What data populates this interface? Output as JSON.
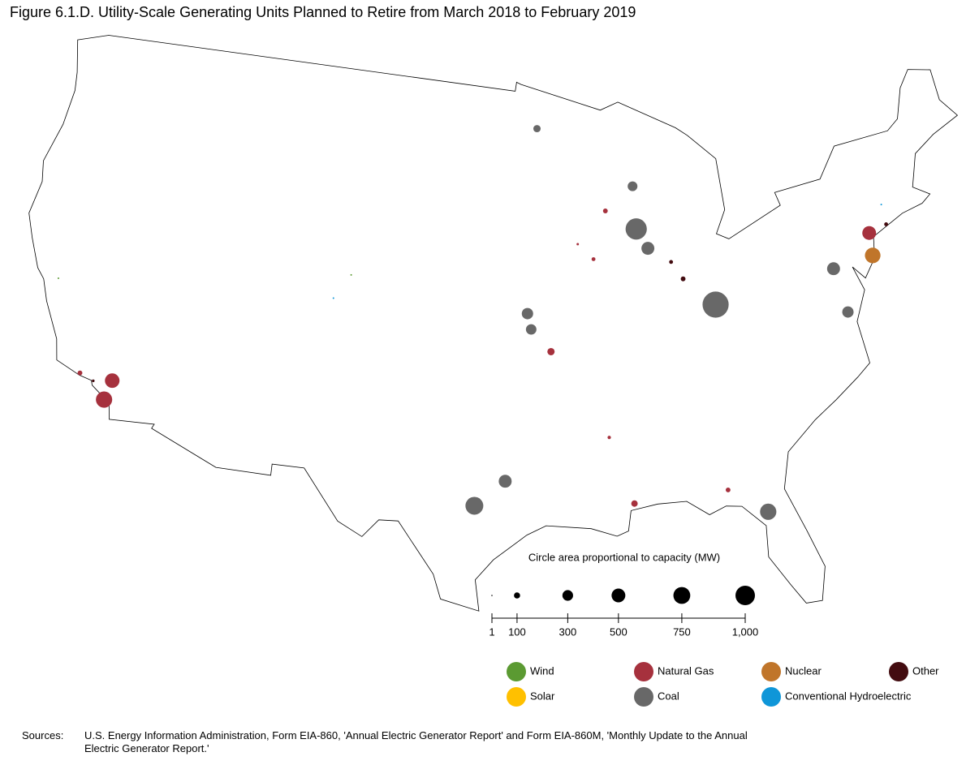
{
  "chart_data": {
    "type": "bubble-map",
    "title": "Figure 6.1.D. Utility-Scale Generating Units Planned to Retire from March 2018 to February 2019",
    "size_legend": {
      "title": "Circle area proportional to capacity (MW)",
      "xlim": [
        1,
        1000
      ],
      "xticks": [
        1,
        100,
        300,
        500,
        750,
        {
          "value": 1000,
          "label": "1,000"
        }
      ]
    },
    "series": [
      {
        "name": "Wind",
        "color": "#5b9a32",
        "lon": [
          -121.7,
          -105.0
        ],
        "lat": [
          38.0,
          40.5
        ],
        "values": [
          5,
          2
        ]
      },
      {
        "name": "Natural Gas",
        "color": "#a6313d",
        "lon": [
          -119.2,
          -117.4,
          -117.6,
          -89.7,
          -91.5,
          -90.6,
          -93.3,
          -90.3,
          -89.2,
          -84.3,
          -74.1
        ],
        "lat": [
          34.2,
          34.2,
          33.3,
          43.5,
          42.1,
          41.4,
          37.4,
          33.5,
          30.5,
          30.7,
          40.8
        ],
        "values": [
          60,
          560,
          700,
          60,
          15,
          40,
          140,
          30,
          110,
          60,
          500
        ]
      },
      {
        "name": "Nuclear",
        "color": "#c0752a",
        "lon": [
          -74.2
        ],
        "lat": [
          39.8
        ],
        "values": [
          640
        ]
      },
      {
        "name": "Other",
        "color": "#430c10",
        "lon": [
          -118.4,
          -86.0,
          -85.4,
          -83.7,
          -73.0
        ],
        "lat": [
          34.0,
          41.0,
          40.2,
          38.9,
          41.0
        ],
        "values": [
          20,
          40,
          60,
          20,
          40
        ]
      },
      {
        "name": "Solar",
        "color": "#ffc000",
        "lon": [],
        "lat": [],
        "values": []
      },
      {
        "name": "Coal",
        "color": "#686868",
        "lon": [
          -93.8,
          -87.9,
          -87.9,
          -87.3,
          -83.7,
          -94.6,
          -94.4,
          -95.9,
          -97.5,
          -82.4,
          -76.6,
          -76.3
        ],
        "lat": [
          47.3,
          44.5,
          42.6,
          41.7,
          38.9,
          39.1,
          38.4,
          31.7,
          30.6,
          29.5,
          39.6,
          37.6
        ],
        "values": [
          140,
          250,
          1190,
          440,
          1800,
          340,
          290,
          440,
          840,
          700,
          440,
          340
        ]
      },
      {
        "name": "Conventional Hydroelectric",
        "color": "#0f96d8",
        "lon": [
          -105.9,
          -73.0
        ],
        "lat": [
          39.4,
          41.9
        ],
        "values": [
          2,
          2
        ]
      }
    ],
    "sources_label": "Sources:",
    "sources": "U.S. Energy Information Administration, Form EIA-860, 'Annual Electric Generator Report' and Form EIA-860M, 'Monthly Update to the Annual Electric Generator Report.'"
  }
}
